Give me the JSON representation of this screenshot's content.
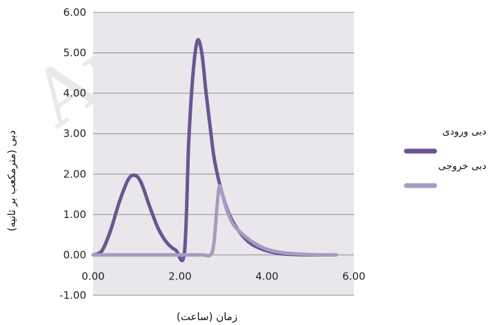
{
  "chart_data": {
    "type": "line",
    "xlabel": "زمان (ساعت)",
    "ylabel": "دبی (مترمکعب بر ثانیه)",
    "xlim": [
      0,
      6
    ],
    "ylim": [
      -1,
      6
    ],
    "x_ticks": [
      "0.00",
      "2.00",
      "4.00",
      "6.00"
    ],
    "y_ticks": [
      "-1.00",
      "0.00",
      "1.00",
      "2.00",
      "3.00",
      "4.00",
      "5.00",
      "6.00"
    ],
    "grid": "horizontal",
    "legend_position": "right",
    "series": [
      {
        "name": "دبی ورودی",
        "color": "#6b5592",
        "points": [
          [
            0,
            0
          ],
          [
            0.2,
            0.1
          ],
          [
            0.4,
            0.6
          ],
          [
            0.6,
            1.3
          ],
          [
            0.8,
            1.85
          ],
          [
            0.95,
            1.97
          ],
          [
            1.1,
            1.8
          ],
          [
            1.3,
            1.2
          ],
          [
            1.5,
            0.65
          ],
          [
            1.7,
            0.3
          ],
          [
            1.9,
            0.12
          ],
          [
            2.1,
            0.05
          ],
          [
            2.2,
            2.8
          ],
          [
            2.3,
            4.5
          ],
          [
            2.4,
            5.3
          ],
          [
            2.5,
            5.0
          ],
          [
            2.6,
            4.0
          ],
          [
            2.7,
            3.1
          ],
          [
            2.8,
            2.3
          ],
          [
            3.0,
            1.4
          ],
          [
            3.2,
            0.85
          ],
          [
            3.5,
            0.4
          ],
          [
            3.8,
            0.18
          ],
          [
            4.2,
            0.05
          ],
          [
            4.6,
            0.01
          ],
          [
            5.0,
            0
          ],
          [
            5.5,
            0
          ]
        ]
      },
      {
        "name": "دبی خروجی",
        "color": "#a79bc2",
        "points": [
          [
            0,
            0
          ],
          [
            0.5,
            0
          ],
          [
            1.0,
            0
          ],
          [
            1.5,
            0
          ],
          [
            2.0,
            0
          ],
          [
            2.5,
            0
          ],
          [
            2.7,
            0
          ],
          [
            2.78,
            0.3
          ],
          [
            2.85,
            1.2
          ],
          [
            2.9,
            1.68
          ],
          [
            2.95,
            1.6
          ],
          [
            3.05,
            1.2
          ],
          [
            3.2,
            0.8
          ],
          [
            3.4,
            0.55
          ],
          [
            3.7,
            0.3
          ],
          [
            4.0,
            0.14
          ],
          [
            4.4,
            0.05
          ],
          [
            4.8,
            0.02
          ],
          [
            5.2,
            0
          ],
          [
            5.6,
            0
          ]
        ]
      }
    ]
  },
  "watermark": "Arc"
}
